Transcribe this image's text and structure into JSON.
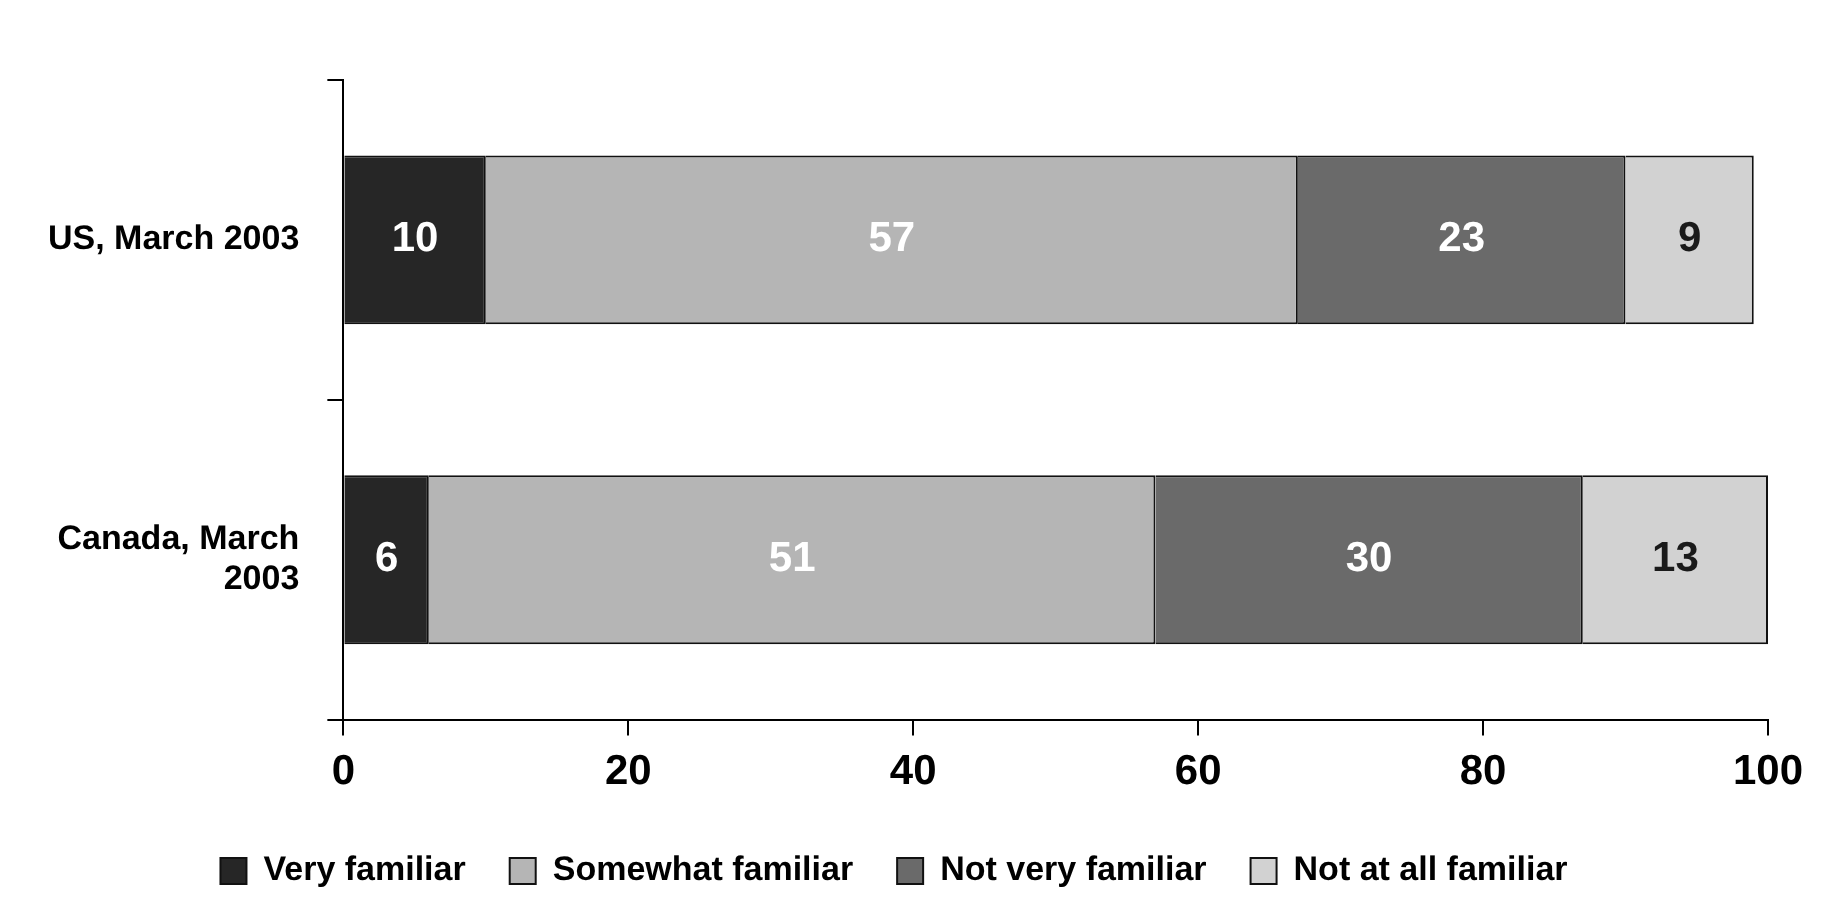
{
  "chart_data": {
    "type": "bar",
    "orientation": "horizontal",
    "stacked": true,
    "categories": [
      "US, March 2003",
      "Canada, March 2003"
    ],
    "series": [
      {
        "name": "Very familiar",
        "color": "#262626",
        "values": [
          10,
          6
        ]
      },
      {
        "name": "Somewhat familiar",
        "color": "#b5b5b5",
        "values": [
          57,
          51
        ]
      },
      {
        "name": "Not very familiar",
        "color": "#6a6a6a",
        "values": [
          23,
          30
        ]
      },
      {
        "name": "Not at all familiar",
        "color": "#d2d2d2",
        "values": [
          9,
          13
        ]
      }
    ],
    "xlim": [
      0,
      100
    ],
    "xticks": [
      0,
      20,
      40,
      60,
      80,
      100
    ],
    "data_labels": true,
    "grid": false,
    "legend": "bottom"
  }
}
